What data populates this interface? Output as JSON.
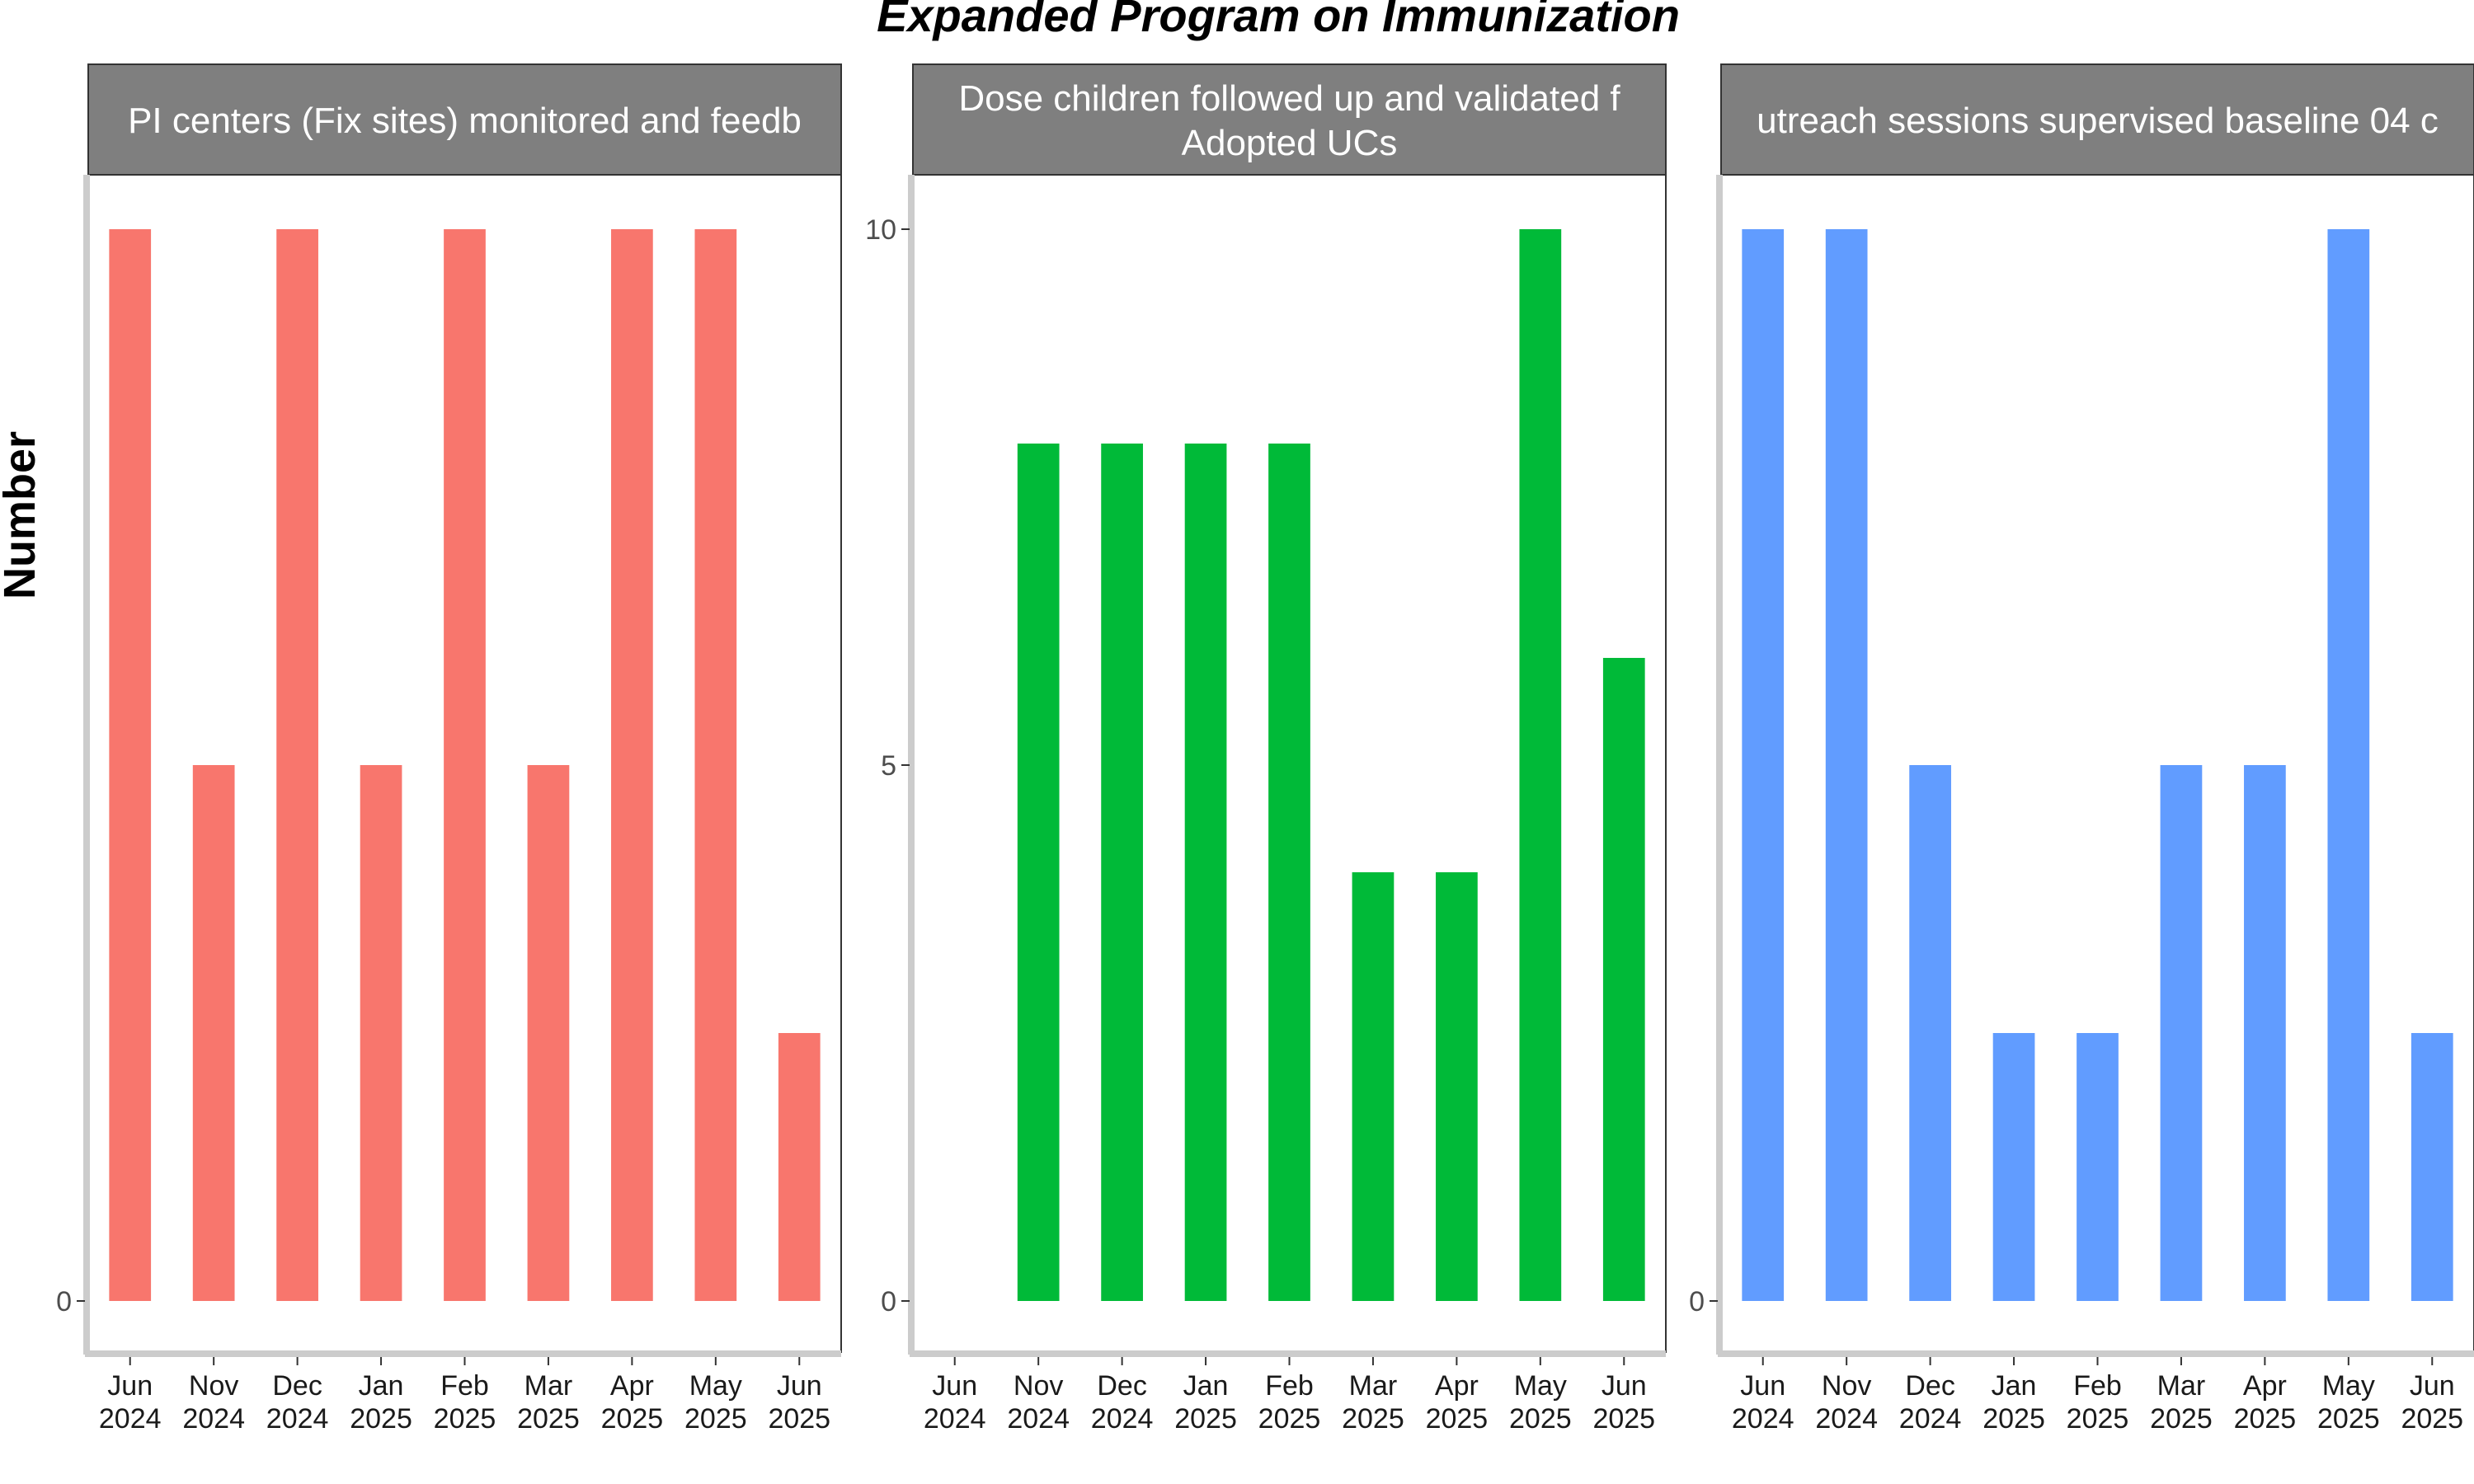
{
  "chart_data": {
    "type": "bar",
    "title": "Expanded Program on Immunization",
    "ylabel": "Number",
    "xlabel": "",
    "categories": [
      "Jun 2024",
      "Nov 2024",
      "Dec 2024",
      "Jan 2025",
      "Feb 2025",
      "Mar 2025",
      "Apr 2025",
      "May 2025",
      "Jun 2025"
    ],
    "grid": false,
    "legend": "none",
    "facets": [
      {
        "strip": [
          "PI centers (Fix sites) monitored and feedb"
        ],
        "color": "#F8766D",
        "yticks": [
          0
        ],
        "ylim": [
          0,
          10.5
        ],
        "values": [
          10,
          5,
          10,
          5,
          10,
          5,
          10,
          10,
          2.5
        ]
      },
      {
        "strip": [
          "Dose children followed up and validated f",
          "Adopted UCs"
        ],
        "color": "#00BA38",
        "yticks": [
          0,
          5,
          10
        ],
        "ylim": [
          0,
          10.5
        ],
        "values": [
          null,
          8,
          8,
          8,
          8,
          4,
          4,
          10,
          6
        ]
      },
      {
        "strip": [
          "utreach sessions supervised baseline 04 c"
        ],
        "color": "#619CFF",
        "yticks": [
          0
        ],
        "ylim": [
          0,
          10.5
        ],
        "values": [
          10,
          10,
          5,
          2.5,
          2.5,
          5,
          5,
          10,
          2.5
        ]
      }
    ]
  }
}
